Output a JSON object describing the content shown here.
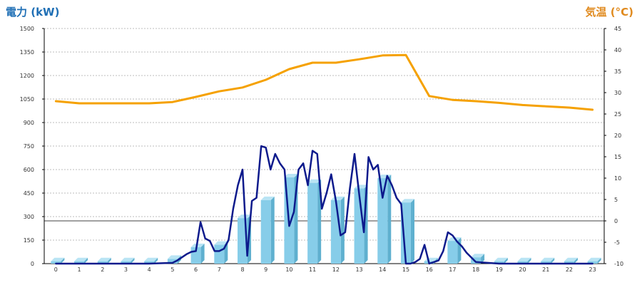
{
  "titles": {
    "left_axis": "電力 (kW)",
    "right_axis": "気温 (°C)"
  },
  "colors": {
    "bar_fill": "#87cde9",
    "bar_side": "#5fb0cf",
    "bar_top": "#b9e4f4",
    "power_line": "#0d1a8c",
    "temp_line": "#f5a100",
    "grid": "#bdbdbd",
    "left_title": "#1f6fb5",
    "right_title": "#e08a1e"
  },
  "chart_data": {
    "type": "bar",
    "grid": true,
    "categories": [
      "0",
      "1",
      "2",
      "3",
      "4",
      "5",
      "6",
      "7",
      "8",
      "9",
      "10",
      "11",
      "12",
      "13",
      "14",
      "15",
      "16",
      "17",
      "18",
      "19",
      "20",
      "21",
      "22",
      "23"
    ],
    "y_left": {
      "label": "電力 (kW)",
      "ylim": [
        0,
        1500
      ],
      "ticks": [
        0,
        150,
        300,
        450,
        600,
        750,
        900,
        1050,
        1200,
        1350,
        1500
      ]
    },
    "y_right": {
      "label": "気温 (°C)",
      "ylim": [
        -10,
        45
      ],
      "ticks": [
        -10,
        -5,
        0,
        5,
        10,
        15,
        20,
        25,
        30,
        35,
        40,
        45
      ]
    },
    "series": [
      {
        "kind": "bar",
        "axis": "left",
        "values": [
          15,
          15,
          15,
          15,
          15,
          30,
          105,
          120,
          290,
          405,
          550,
          515,
          405,
          480,
          545,
          390,
          15,
          145,
          40,
          15,
          15,
          15,
          15,
          15
        ]
      },
      {
        "kind": "line",
        "axis": "left",
        "x": [
          0,
          1,
          2,
          3,
          4,
          5,
          5.2,
          5.4,
          5.6,
          5.8,
          6,
          6.2,
          6.4,
          6.6,
          6.8,
          7,
          7.2,
          7.4,
          7.6,
          7.8,
          8,
          8.2,
          8.4,
          8.6,
          8.8,
          9,
          9.2,
          9.4,
          9.6,
          9.8,
          10,
          10.2,
          10.4,
          10.6,
          10.8,
          11,
          11.2,
          11.4,
          11.6,
          11.8,
          12,
          12.2,
          12.4,
          12.6,
          12.8,
          13,
          13.2,
          13.4,
          13.6,
          13.8,
          14,
          14.2,
          14.4,
          14.6,
          14.8,
          15,
          15.2,
          15.4,
          15.6,
          15.8,
          16,
          16.2,
          16.4,
          16.6,
          16.8,
          17,
          17.2,
          17.4,
          17.6,
          17.8,
          18,
          19,
          20,
          21,
          22,
          23
        ],
        "values": [
          0,
          0,
          0,
          0,
          0,
          5,
          20,
          40,
          60,
          75,
          80,
          265,
          160,
          145,
          80,
          80,
          95,
          150,
          350,
          500,
          600,
          50,
          400,
          420,
          750,
          740,
          600,
          700,
          640,
          600,
          240,
          330,
          600,
          640,
          500,
          720,
          700,
          350,
          450,
          570,
          400,
          180,
          200,
          480,
          700,
          440,
          200,
          680,
          600,
          630,
          420,
          560,
          500,
          420,
          380,
          0,
          0,
          10,
          30,
          120,
          0,
          10,
          20,
          80,
          200,
          180,
          140,
          110,
          70,
          40,
          10,
          0,
          0,
          0,
          0,
          0
        ]
      },
      {
        "kind": "line",
        "axis": "right",
        "x": [
          0,
          1,
          2,
          3,
          4,
          5,
          6,
          7,
          8,
          9,
          10,
          11,
          12,
          13,
          14,
          15,
          16,
          17,
          18,
          19,
          20,
          21,
          22,
          23
        ],
        "values": [
          28,
          27.5,
          27.5,
          27.5,
          27.5,
          27.8,
          29,
          30.3,
          31.2,
          33,
          35.5,
          37,
          37,
          37.8,
          38.7,
          38.8,
          29.2,
          28.3,
          28,
          27.6,
          27.1,
          26.8,
          26.5,
          26
        ]
      }
    ]
  }
}
